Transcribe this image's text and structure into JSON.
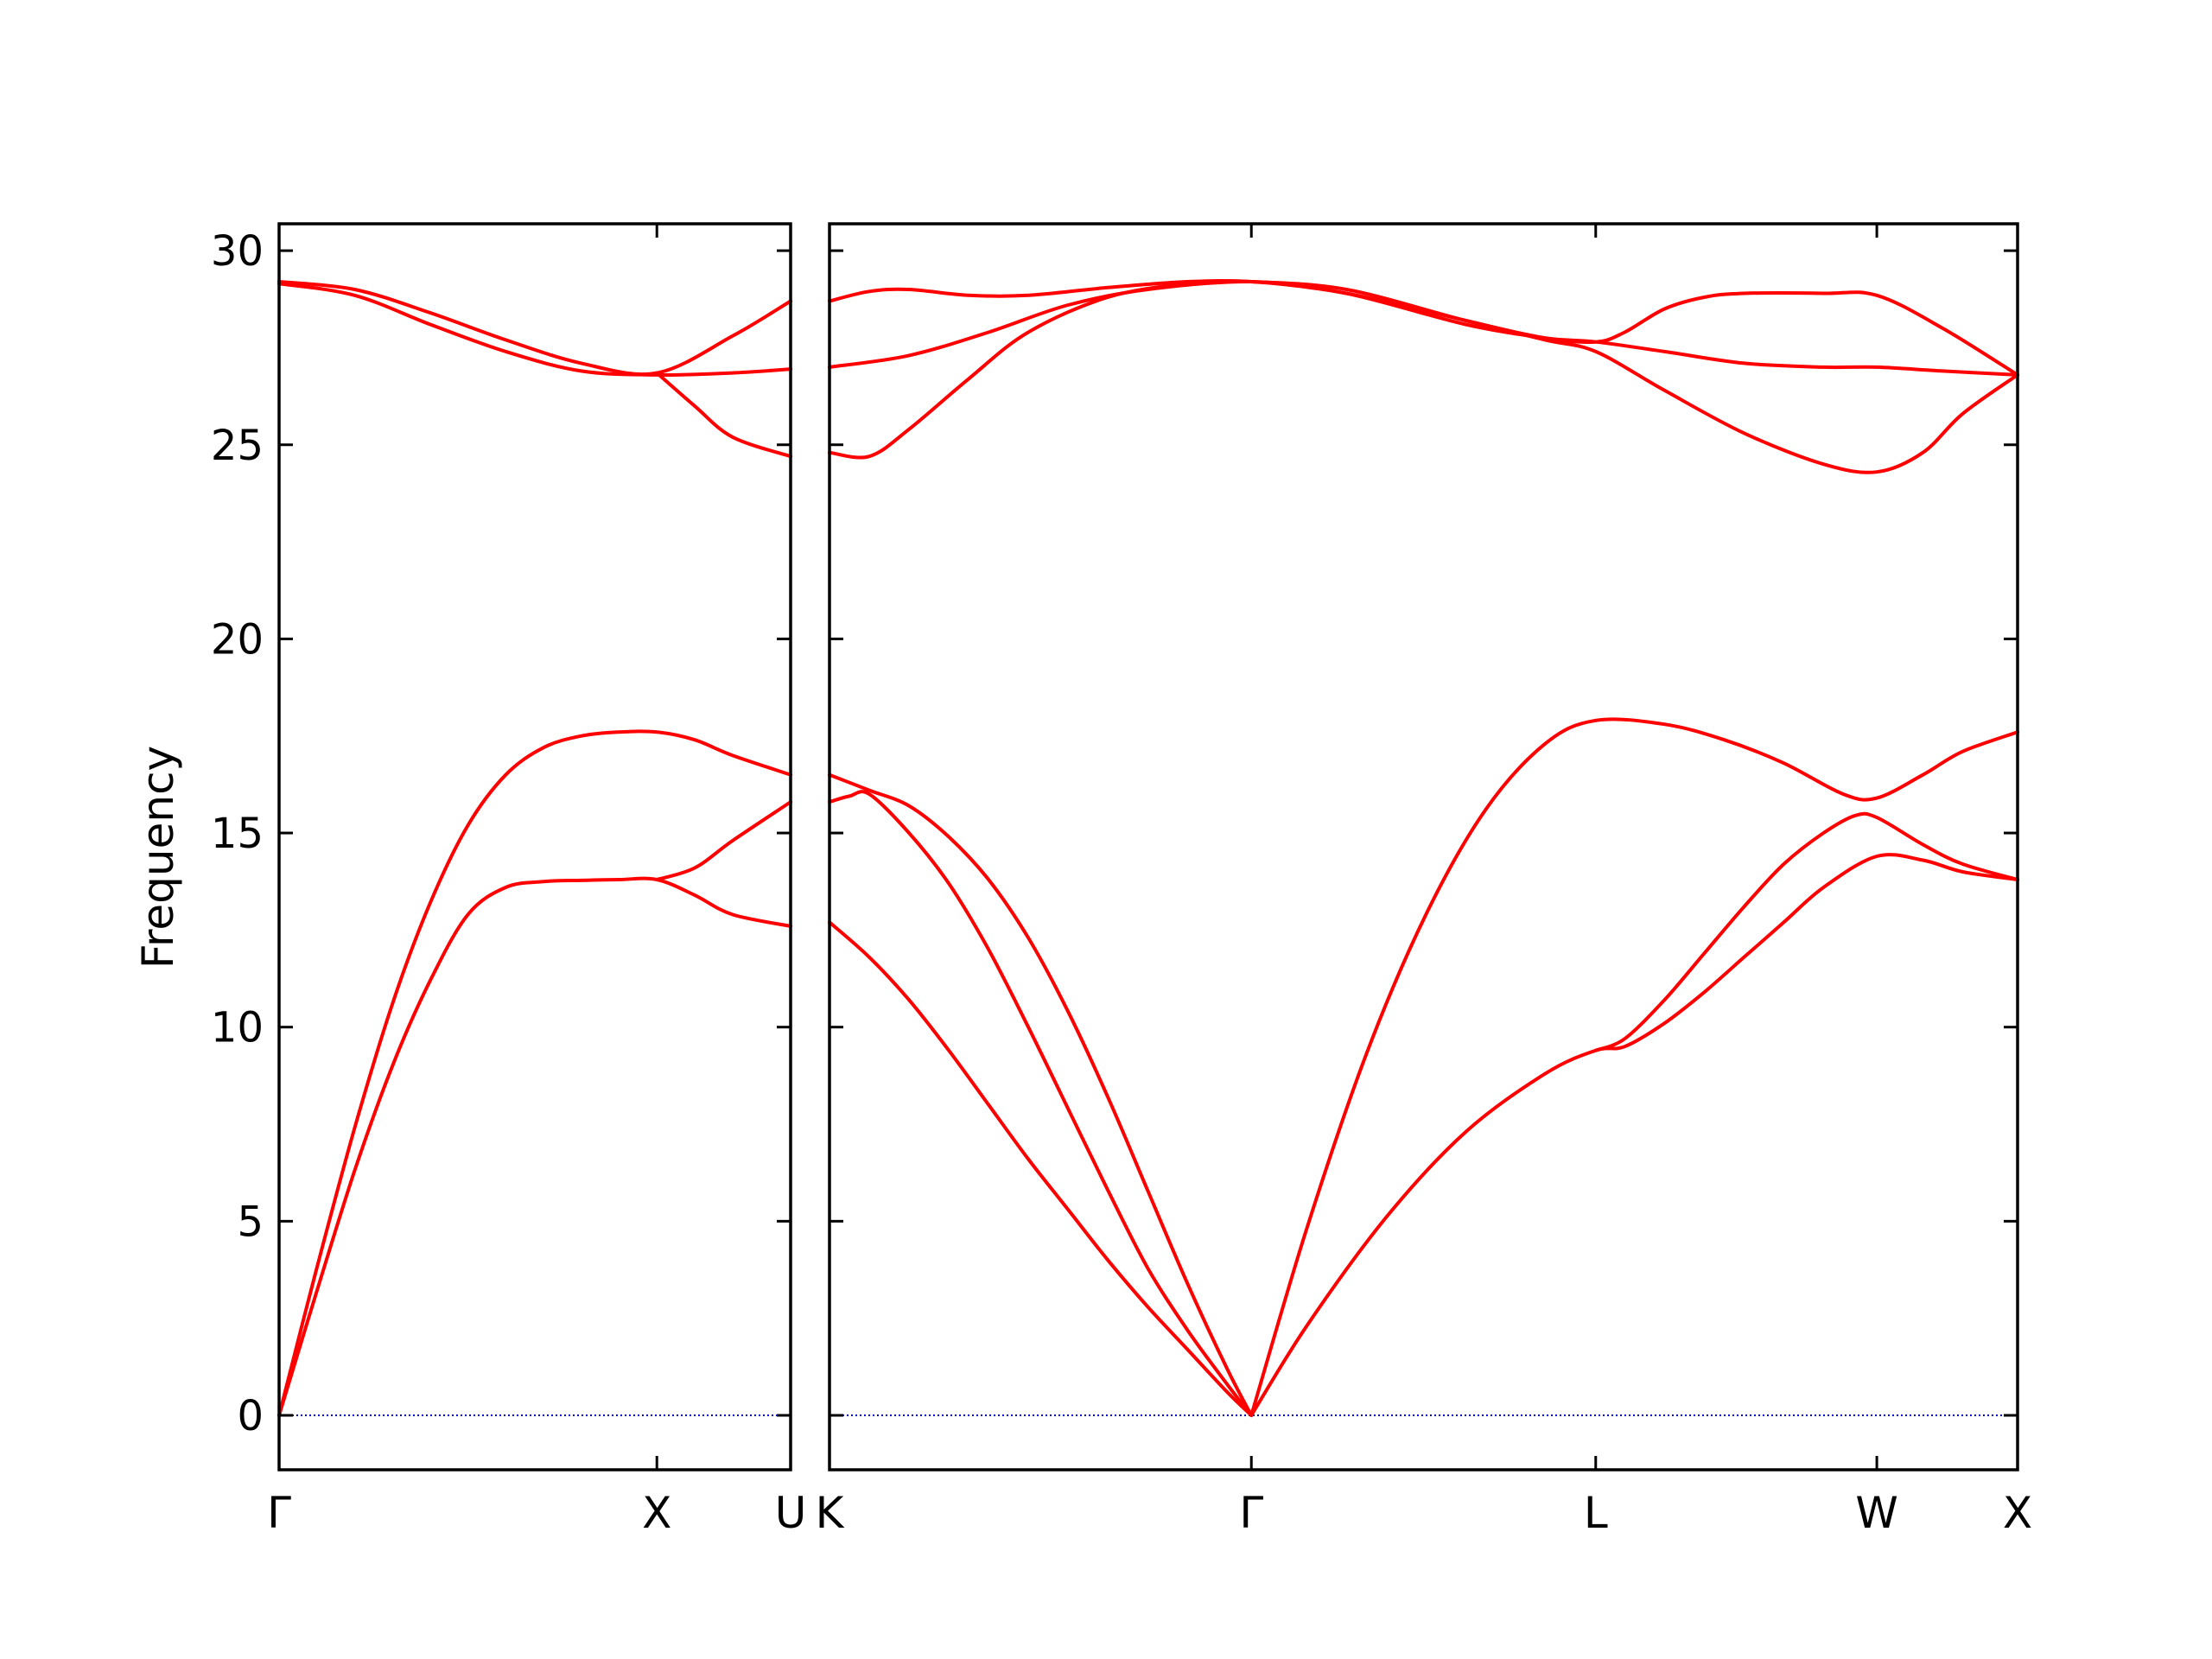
{
  "chart_data": {
    "type": "line",
    "title": "",
    "ylabel": "Frequency",
    "xlabel": "",
    "ylim": [
      -1.5,
      30.7
    ],
    "yticks": [
      0,
      5,
      10,
      15,
      20,
      25,
      30
    ],
    "grid": false,
    "colors": {
      "band": "#ff0000",
      "zero_line": "#0000cc",
      "axes": "#000000"
    },
    "panels": [
      {
        "kpoints": [
          {
            "label": "Γ",
            "x": 0.0
          },
          {
            "label": "X",
            "x": 1.0
          },
          {
            "label": "U",
            "x": 1.354
          }
        ],
        "series": [
          {
            "values": [
              [
                0,
                0
              ],
              [
                0.1,
                3.2
              ],
              [
                0.2,
                6.3
              ],
              [
                0.3,
                9.0
              ],
              [
                0.4,
                11.2
              ],
              [
                0.5,
                12.9
              ],
              [
                0.6,
                13.6
              ],
              [
                0.7,
                13.75
              ],
              [
                0.8,
                13.78
              ],
              [
                0.9,
                13.8
              ],
              [
                1.0,
                13.8
              ],
              [
                1.1,
                13.4
              ],
              [
                1.2,
                12.9
              ],
              [
                1.354,
                12.6
              ]
            ]
          },
          {
            "values": [
              [
                0,
                0
              ],
              [
                0.1,
                3.8
              ],
              [
                0.2,
                7.4
              ],
              [
                0.3,
                10.6
              ],
              [
                0.4,
                13.2
              ],
              [
                0.5,
                15.2
              ],
              [
                0.6,
                16.5
              ],
              [
                0.7,
                17.2
              ],
              [
                0.8,
                17.5
              ],
              [
                0.9,
                17.6
              ],
              [
                1.0,
                17.6
              ],
              [
                1.1,
                17.4
              ],
              [
                1.2,
                17.0
              ],
              [
                1.354,
                16.5
              ]
            ]
          },
          {
            "values": [
              [
                1.0,
                13.8
              ],
              [
                1.1,
                14.1
              ],
              [
                1.2,
                14.8
              ],
              [
                1.354,
                15.8
              ]
            ]
          },
          {
            "values": [
              [
                0,
                29.15
              ],
              [
                0.2,
                28.85
              ],
              [
                0.4,
                28.1
              ],
              [
                0.6,
                27.4
              ],
              [
                0.8,
                26.9
              ],
              [
                1.0,
                26.8
              ],
              [
                1.2,
                26.85
              ],
              [
                1.354,
                26.95
              ]
            ]
          },
          {
            "values": [
              [
                0,
                29.2
              ],
              [
                0.2,
                29.0
              ],
              [
                0.4,
                28.4
              ],
              [
                0.6,
                27.7
              ],
              [
                0.8,
                27.1
              ],
              [
                1.0,
                26.85
              ],
              [
                1.2,
                27.8
              ],
              [
                1.354,
                28.7
              ]
            ]
          },
          {
            "values": [
              [
                1.0,
                26.85
              ],
              [
                1.1,
                26.0
              ],
              [
                1.2,
                25.2
              ],
              [
                1.354,
                24.7
              ]
            ]
          }
        ]
      },
      {
        "kpoints": [
          {
            "label": "K",
            "x": 0.0
          },
          {
            "label": "Γ",
            "x": 1.061
          },
          {
            "label": "L",
            "x": 1.927
          },
          {
            "label": "W",
            "x": 2.634
          },
          {
            "label": "X",
            "x": 2.988
          }
        ],
        "series": [
          {
            "values": [
              [
                0,
                12.7
              ],
              [
                0.1,
                11.8
              ],
              [
                0.2,
                10.7
              ],
              [
                0.3,
                9.4
              ],
              [
                0.4,
                8.0
              ],
              [
                0.5,
                6.6
              ],
              [
                0.6,
                5.3
              ],
              [
                0.7,
                4.0
              ],
              [
                0.8,
                2.8
              ],
              [
                0.9,
                1.7
              ],
              [
                1.0,
                0.6
              ],
              [
                1.061,
                0
              ]
            ]
          },
          {
            "values": [
              [
                0,
                15.8
              ],
              [
                0.05,
                15.95
              ],
              [
                0.1,
                16.0
              ],
              [
                0.2,
                15.0
              ],
              [
                0.3,
                13.7
              ],
              [
                0.4,
                12.0
              ],
              [
                0.5,
                10.0
              ],
              [
                0.6,
                7.9
              ],
              [
                0.7,
                5.8
              ],
              [
                0.8,
                3.8
              ],
              [
                0.9,
                2.2
              ],
              [
                1.0,
                0.8
              ],
              [
                1.061,
                0
              ]
            ]
          },
          {
            "values": [
              [
                0,
                16.5
              ],
              [
                0.1,
                16.1
              ],
              [
                0.2,
                15.7
              ],
              [
                0.3,
                14.9
              ],
              [
                0.4,
                13.8
              ],
              [
                0.5,
                12.3
              ],
              [
                0.6,
                10.4
              ],
              [
                0.7,
                8.2
              ],
              [
                0.8,
                5.8
              ],
              [
                0.9,
                3.4
              ],
              [
                1.0,
                1.2
              ],
              [
                1.061,
                0
              ]
            ]
          },
          {
            "values": [
              [
                1.061,
                0
              ],
              [
                1.2,
                2.3
              ],
              [
                1.4,
                5.1
              ],
              [
                1.6,
                7.3
              ],
              [
                1.8,
                8.8
              ],
              [
                1.927,
                9.4
              ],
              [
                2.0,
                9.5
              ],
              [
                2.1,
                10.1
              ],
              [
                2.2,
                10.9
              ],
              [
                2.3,
                11.8
              ],
              [
                2.4,
                12.7
              ],
              [
                2.5,
                13.6
              ],
              [
                2.634,
                14.4
              ],
              [
                2.75,
                14.3
              ],
              [
                2.85,
                14.0
              ],
              [
                2.988,
                13.8
              ]
            ]
          },
          {
            "values": [
              [
                1.927,
                9.4
              ],
              [
                2.0,
                9.7
              ],
              [
                2.1,
                10.7
              ],
              [
                2.2,
                11.9
              ],
              [
                2.3,
                13.1
              ],
              [
                2.4,
                14.2
              ],
              [
                2.5,
                15.0
              ],
              [
                2.58,
                15.45
              ],
              [
                2.634,
                15.4
              ],
              [
                2.75,
                14.7
              ],
              [
                2.85,
                14.2
              ],
              [
                2.988,
                13.8
              ]
            ]
          },
          {
            "values": [
              [
                1.061,
                0
              ],
              [
                1.2,
                4.8
              ],
              [
                1.35,
                9.3
              ],
              [
                1.5,
                12.9
              ],
              [
                1.65,
                15.6
              ],
              [
                1.8,
                17.3
              ],
              [
                1.927,
                17.9
              ],
              [
                2.1,
                17.8
              ],
              [
                2.25,
                17.4
              ],
              [
                2.4,
                16.8
              ],
              [
                2.55,
                16.0
              ],
              [
                2.634,
                15.9
              ],
              [
                2.75,
                16.5
              ],
              [
                2.85,
                17.1
              ],
              [
                2.988,
                17.6
              ]
            ]
          },
          {
            "values": [
              [
                0,
                24.8
              ],
              [
                0.1,
                24.7
              ],
              [
                0.2,
                25.4
              ],
              [
                0.35,
                26.7
              ],
              [
                0.5,
                27.9
              ],
              [
                0.7,
                28.8
              ],
              [
                0.9,
                29.15
              ],
              [
                1.061,
                29.2
              ],
              [
                1.3,
                28.9
              ],
              [
                1.6,
                28.2
              ],
              [
                1.8,
                27.7
              ],
              [
                1.927,
                27.4
              ],
              [
                2.1,
                26.4
              ],
              [
                2.3,
                25.3
              ],
              [
                2.5,
                24.5
              ],
              [
                2.634,
                24.3
              ],
              [
                2.75,
                24.8
              ],
              [
                2.85,
                25.8
              ],
              [
                2.988,
                26.8
              ]
            ]
          },
          {
            "values": [
              [
                0,
                27.0
              ],
              [
                0.2,
                27.3
              ],
              [
                0.4,
                27.9
              ],
              [
                0.6,
                28.6
              ],
              [
                0.8,
                29.0
              ],
              [
                1.061,
                29.2
              ],
              [
                1.3,
                28.9
              ],
              [
                1.6,
                28.1
              ],
              [
                1.8,
                27.75
              ],
              [
                1.927,
                27.65
              ],
              [
                2.1,
                27.4
              ],
              [
                2.3,
                27.1
              ],
              [
                2.5,
                27.0
              ],
              [
                2.634,
                27.0
              ],
              [
                2.8,
                26.9
              ],
              [
                2.988,
                26.8
              ]
            ]
          },
          {
            "values": [
              [
                0,
                28.7
              ],
              [
                0.1,
                28.95
              ],
              [
                0.2,
                29.0
              ],
              [
                0.35,
                28.85
              ],
              [
                0.5,
                28.85
              ],
              [
                0.7,
                29.05
              ],
              [
                0.9,
                29.2
              ],
              [
                1.061,
                29.2
              ],
              [
                1.3,
                29.0
              ],
              [
                1.6,
                28.2
              ],
              [
                1.8,
                27.75
              ],
              [
                1.927,
                27.65
              ],
              [
                2.0,
                27.9
              ],
              [
                2.1,
                28.5
              ],
              [
                2.2,
                28.8
              ],
              [
                2.3,
                28.9
              ],
              [
                2.5,
                28.9
              ],
              [
                2.634,
                28.85
              ],
              [
                2.8,
                28.0
              ],
              [
                2.988,
                26.8
              ]
            ]
          }
        ]
      }
    ]
  }
}
